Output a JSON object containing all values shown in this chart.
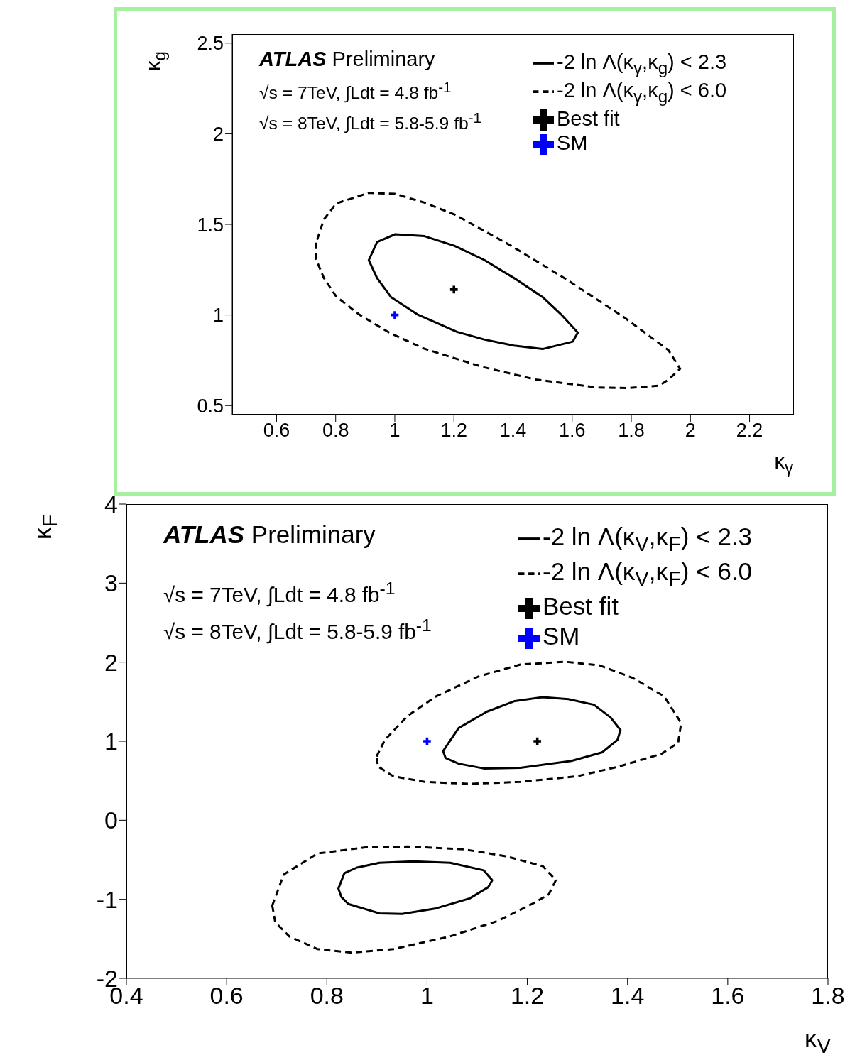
{
  "chart_data": [
    {
      "type": "line",
      "xlabel": "κ$_{γ}$",
      "ylabel": "κ$_{g}$",
      "xlim": [
        0.45,
        2.35
      ],
      "ylim": [
        0.45,
        2.55
      ],
      "xticks": [
        0.6,
        0.8,
        1,
        1.2,
        1.4,
        1.6,
        1.8,
        2,
        2.2
      ],
      "yticks": [
        0.5,
        1,
        1.5,
        2,
        2.5
      ],
      "legend": "top right",
      "annotations": [
        "ATLAS",
        "Preliminary",
        "√s = 7TeV, ∫Ldt = 4.8 fb$^{-1}$",
        "√s = 8TeV, ∫Ldt = 5.8-5.9 fb$^{-1}$"
      ],
      "series": [
        {
          "name": "SM",
          "type": "scatter",
          "marker": "cross",
          "color": "#0000ff",
          "x": [
            1
          ],
          "values": [
            1
          ]
        },
        {
          "name": "Best fit",
          "type": "scatter",
          "marker": "cross",
          "color": "#000000",
          "x": [
            1.2
          ],
          "values": [
            1.14
          ]
        },
        {
          "name": "-2 ln Λ(κ$_{γ}$,κ$_{g}$) < 2.3",
          "type": "line",
          "line_style": "solid",
          "color": "#000000"
        },
        {
          "name": "-2 ln Λ(κ$_{γ}$,κ$_{g}$) < 6.0",
          "type": "line",
          "line_style": "dashed",
          "color": "#000000"
        }
      ]
    },
    {
      "type": "line",
      "xlabel": "κ$_{V}$",
      "ylabel": "κ$_{F}$",
      "xlim": [
        0.4,
        1.8
      ],
      "ylim": [
        -2,
        4
      ],
      "xticks": [
        0.4,
        0.6,
        0.8,
        1,
        1.2,
        1.4,
        1.6,
        1.8
      ],
      "yticks": [
        -2,
        -1,
        0,
        1,
        2,
        3,
        4
      ],
      "legend": "top right",
      "annotations": [
        "ATLAS",
        "Preliminary",
        "√s = 7TeV, ∫Ldt = 4.8 fb$^{-1}$",
        "√s = 8TeV, ∫Ldt = 5.8-5.9 fb$^{-1}$"
      ],
      "series": [
        {
          "name": "SM",
          "type": "scatter",
          "marker": "cross",
          "color": "#0000ff",
          "x": [
            1
          ],
          "values": [
            1
          ]
        },
        {
          "name": "Best fit",
          "type": "scatter",
          "marker": "cross",
          "color": "#000000",
          "x": [
            1.22
          ],
          "values": [
            1
          ]
        },
        {
          "name": "-2 ln Λ(κ$_{V}$,κ$_{F}$) < 2.3",
          "type": "line",
          "line_style": "solid",
          "color": "#000000"
        },
        {
          "name": "-2 ln Λ(κ$_{V}$,κ$_{F}$) < 6.0",
          "type": "line",
          "line_style": "dashed",
          "color": "#000000"
        }
      ]
    }
  ]
}
